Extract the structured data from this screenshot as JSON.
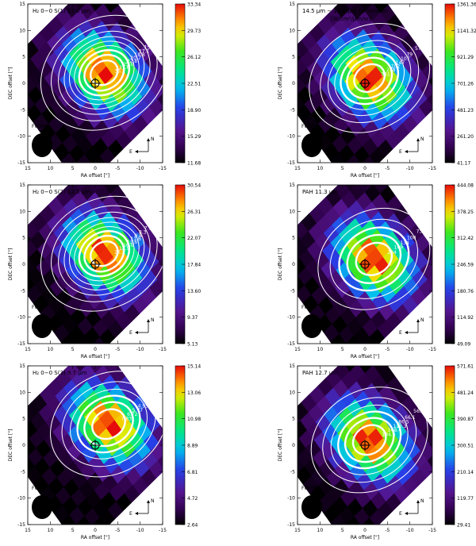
{
  "figure": {
    "panels_note": "six contour/color maps"
  },
  "chart_data": [
    {
      "type": "heatmap",
      "title": "H₂ 0−0 S(1) 17.0 μm",
      "xlabel": "RA offset [\"]",
      "ylabel": "DEC offset [\"]",
      "xlim": [
        15,
        -15
      ],
      "ylim": [
        -15,
        15
      ],
      "x_ticks": [
        "15",
        "10",
        "5",
        "0",
        "-5",
        "-10",
        "-15"
      ],
      "y_ticks": [
        "-15",
        "-10",
        "-5",
        "0",
        "5",
        "10",
        "15"
      ],
      "colorbar_ticks": [
        "33.34",
        "29.73",
        "26.12",
        "22.51",
        "18.90",
        "15.29",
        "11.68"
      ],
      "contour_labels": [
        "14.1",
        "15.5",
        "17.1",
        "18.8",
        "20.7",
        "22.8",
        "25.0",
        "27.6",
        "30.3"
      ],
      "beam_label": "FWHM",
      "compass": {
        "north": "N",
        "east": "E"
      },
      "peak": [
        -2,
        2
      ]
    },
    {
      "type": "heatmap",
      "title": "14.5 μm − 15.0 μm   continuum",
      "subtitle": "[W/cm²/μm/sr]",
      "xlabel": "RA offset [\"]",
      "ylabel": "DEC offset [\"]",
      "xlim": [
        15,
        -15
      ],
      "ylim": [
        -15,
        15
      ],
      "x_ticks": [
        "15",
        "10",
        "5",
        "0",
        "-5",
        "-10",
        "-15"
      ],
      "y_ticks": [
        "-15",
        "-10",
        "-5",
        "0",
        "5",
        "10",
        "15"
      ],
      "colorbar_ticks": [
        "1361.36",
        "1141.32",
        "921.29",
        "701.26",
        "481.23",
        "261.20",
        "41.17"
      ],
      "contour_labels": [
        "57",
        "79",
        "107",
        "147",
        "202",
        "278",
        "381"
      ],
      "beam_label": "FWHM",
      "compass": {
        "north": "N",
        "east": "E"
      },
      "peak": [
        -1,
        1
      ]
    },
    {
      "type": "heatmap",
      "title": "H₂ 0−0 S(2) 12.3 μm",
      "xlabel": "RA offset [\"]",
      "ylabel": "DEC offset [\"]",
      "xlim": [
        15,
        -15
      ],
      "ylim": [
        -15,
        15
      ],
      "x_ticks": [
        "15",
        "10",
        "5",
        "0",
        "-5",
        "-10",
        "-15"
      ],
      "y_ticks": [
        "-15",
        "-10",
        "-5",
        "0",
        "5",
        "10",
        "15"
      ],
      "colorbar_ticks": [
        "30.54",
        "26.31",
        "22.07",
        "17.84",
        "13.60",
        "9.37",
        "5.13"
      ],
      "contour_labels": [
        "6.6",
        "7.1",
        "8.3",
        "9.8",
        "11.6",
        "13.6",
        "16.0",
        "18.9",
        "22.2"
      ],
      "beam_label": "FWHM",
      "compass": {
        "north": "N",
        "east": "E"
      },
      "peak": [
        -2,
        2
      ]
    },
    {
      "type": "heatmap",
      "title": "PAH 11.3 μm",
      "xlabel": "RA offset [\"]",
      "ylabel": "DEC offset [\"]",
      "xlim": [
        15,
        -15
      ],
      "ylim": [
        -15,
        15
      ],
      "x_ticks": [
        "15",
        "10",
        "5",
        "0",
        "-5",
        "-10",
        "-15"
      ],
      "y_ticks": [
        "-15",
        "-10",
        "-5",
        "0",
        "5",
        "10",
        "15"
      ],
      "colorbar_ticks": [
        "444.08",
        "378.25",
        "312.42",
        "246.59",
        "180.76",
        "114.92",
        "49.09"
      ],
      "contour_labels": [
        "73",
        "100",
        "134",
        "169",
        "204"
      ],
      "beam_label": "FWHM",
      "compass": {
        "north": "N",
        "east": "E"
      },
      "peak": [
        -2,
        1
      ]
    },
    {
      "type": "heatmap",
      "title": "H₂ 0−0 S(3) 9.7 μm",
      "xlabel": "RA offset [\"]",
      "ylabel": "DEC offset [\"]",
      "xlim": [
        15,
        -15
      ],
      "ylim": [
        -15,
        15
      ],
      "x_ticks": [
        "15",
        "10",
        "5",
        "0",
        "-5",
        "-10",
        "-15"
      ],
      "y_ticks": [
        "-15",
        "-10",
        "-5",
        "0",
        "5",
        "10",
        "15"
      ],
      "colorbar_ticks": [
        "15.14",
        "13.06",
        "10.98",
        "8.89",
        "6.81",
        "4.72",
        "2.64"
      ],
      "contour_labels": [
        "3.64",
        "4.25",
        "4.95",
        "5.77",
        "6.72",
        "7.83"
      ],
      "beam_label": "FWHM",
      "compass": {
        "north": "N",
        "east": "E"
      },
      "peak": [
        -3,
        4
      ]
    },
    {
      "type": "heatmap",
      "title": "PAH 12.7 μm",
      "xlabel": "RA offset [\"]",
      "ylabel": "DEC offset [\"]",
      "xlim": [
        15,
        -15
      ],
      "ylim": [
        -15,
        15
      ],
      "x_ticks": [
        "15",
        "10",
        "5",
        "0",
        "-5",
        "-10",
        "-15"
      ],
      "y_ticks": [
        "-15",
        "-10",
        "-5",
        "0",
        "5",
        "10",
        "15"
      ],
      "colorbar_ticks": [
        "571.61",
        "481.24",
        "390.87",
        "300.51",
        "210.14",
        "119.77",
        "29.41"
      ],
      "contour_labels": [
        "56.1",
        "66.1",
        "86.5",
        "113.3",
        "148.4",
        "194.3"
      ],
      "beam_label": "FWHM",
      "compass": {
        "north": "N",
        "east": "E"
      },
      "peak": [
        -1,
        1
      ]
    }
  ]
}
